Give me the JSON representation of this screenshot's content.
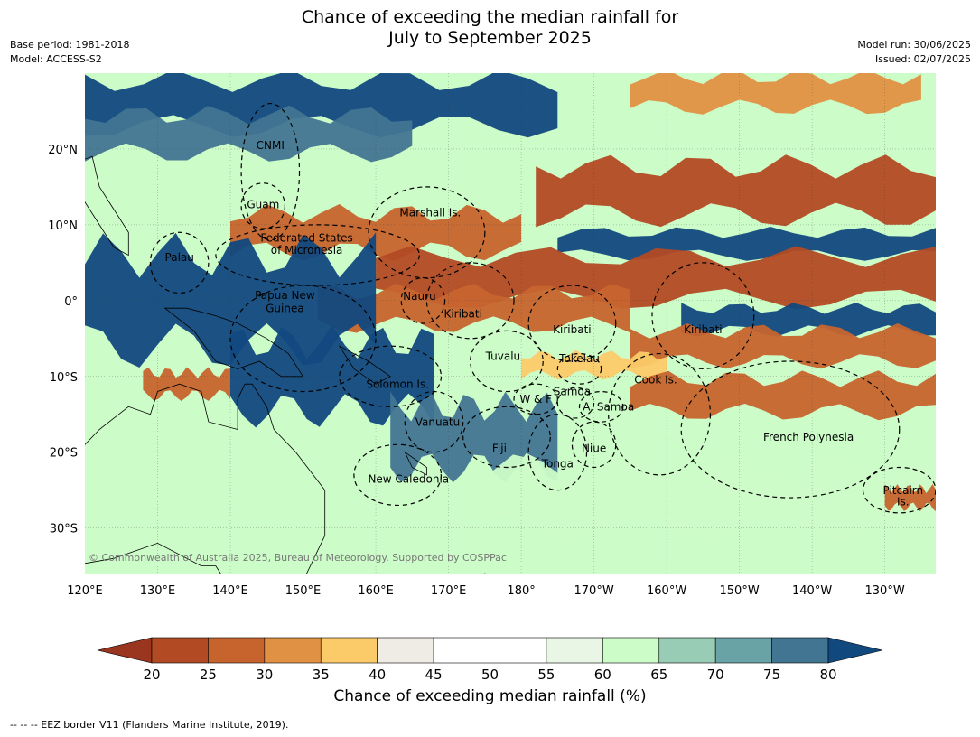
{
  "title": {
    "line1": "Chance of exceeding the median rainfall for",
    "line2": "July to September 2025"
  },
  "meta_left": {
    "base_period": "Base period: 1981-2018",
    "model": "Model: ACCESS-S2"
  },
  "meta_right": {
    "model_run": "Model run: 30/06/2025",
    "issued": "Issued: 02/07/2025"
  },
  "map": {
    "lon_labels": [
      "120°E",
      "130°E",
      "140°E",
      "150°E",
      "160°E",
      "170°E",
      "180°",
      "170°W",
      "160°W",
      "150°W",
      "140°W",
      "130°W"
    ],
    "lat_labels": [
      "20°N",
      "10°N",
      "0°",
      "10°S",
      "20°S",
      "30°S"
    ],
    "lon_range": [
      120,
      237
    ],
    "lat_range": [
      -36,
      30
    ],
    "copyright": "© Commonwealth of Australia 2025, Bureau of Meteorology. Supported by COSPPac",
    "regions": [
      {
        "name": "CNMI",
        "lon": 145.5,
        "lat": 20.0
      },
      {
        "name": "Guam",
        "lon": 144.5,
        "lat": 12.2
      },
      {
        "name": "Marshall Is.",
        "lon": 167.5,
        "lat": 11.1
      },
      {
        "name": "Federated States",
        "lon": 150.5,
        "lat": 7.8
      },
      {
        "name": "of Micronesia",
        "lon": 150.5,
        "lat": 6.2
      },
      {
        "name": "Palau",
        "lon": 133.0,
        "lat": 5.2
      },
      {
        "name": "Papua New",
        "lon": 147.5,
        "lat": 0.2
      },
      {
        "name": "Guinea",
        "lon": 147.5,
        "lat": -1.5
      },
      {
        "name": "Nauru",
        "lon": 166.0,
        "lat": 0.1
      },
      {
        "name": "Kiribati",
        "lon": 172.0,
        "lat": -2.2
      },
      {
        "name": "Kiribati",
        "lon": 187.0,
        "lat": -4.3
      },
      {
        "name": "Kiribati",
        "lon": 205.0,
        "lat": -4.3
      },
      {
        "name": "Tuvalu",
        "lon": 177.5,
        "lat": -7.8
      },
      {
        "name": "Tokelau",
        "lon": 188.0,
        "lat": -8.1
      },
      {
        "name": "Cook Is.",
        "lon": 198.5,
        "lat": -10.9
      },
      {
        "name": "Solomon Is.",
        "lon": 163.0,
        "lat": -11.5
      },
      {
        "name": "Samoa",
        "lon": 187.0,
        "lat": -12.5
      },
      {
        "name": "W & F",
        "lon": 182.0,
        "lat": -13.5
      },
      {
        "name": "A. Samoa",
        "lon": 192.0,
        "lat": -14.5
      },
      {
        "name": "Vanuatu",
        "lon": 168.5,
        "lat": -16.5
      },
      {
        "name": "French Polynesia",
        "lon": 219.5,
        "lat": -18.5
      },
      {
        "name": "Fiji",
        "lon": 177.0,
        "lat": -20.0
      },
      {
        "name": "Niue",
        "lon": 190.0,
        "lat": -20.0
      },
      {
        "name": "Tonga",
        "lon": 185.0,
        "lat": -22.0
      },
      {
        "name": "New Caledonia",
        "lon": 164.5,
        "lat": -24.0
      },
      {
        "name": "Pitcairn",
        "lon": 232.5,
        "lat": -25.5
      },
      {
        "name": "Is.",
        "lon": 232.5,
        "lat": -27.0
      }
    ],
    "bands": [
      {
        "category": 20,
        "lat": 14.5,
        "lon_start": 182,
        "lon_end": 237,
        "half_height": 3.2
      },
      {
        "category": 25,
        "lat": 9.0,
        "lon_start": 140,
        "lon_end": 180,
        "half_height": 2.5
      },
      {
        "category": 80,
        "lat": 7.5,
        "lon_start": 185,
        "lon_end": 237,
        "half_height": 1.5
      },
      {
        "category": 20,
        "lat": 3.0,
        "lon_start": 160,
        "lon_end": 237,
        "half_height": 2.8
      },
      {
        "category": 25,
        "lat": -1.0,
        "lon_start": 152,
        "lon_end": 195,
        "half_height": 2.2
      },
      {
        "category": 80,
        "lat": -2.5,
        "lon_start": 202,
        "lon_end": 237,
        "half_height": 1.5
      },
      {
        "category": 25,
        "lat": -6.0,
        "lon_start": 195,
        "lon_end": 237,
        "half_height": 2.0
      },
      {
        "category": 35,
        "lat": -8.5,
        "lon_start": 180,
        "lon_end": 200,
        "half_height": 1.3
      },
      {
        "category": 25,
        "lat": -12.5,
        "lon_start": 195,
        "lon_end": 237,
        "half_height": 2.2
      },
      {
        "category": 80,
        "lat": 0.0,
        "lon_start": 120,
        "lon_end": 160,
        "half_height": 6.0
      },
      {
        "category": 80,
        "lat": -10.0,
        "lon_start": 140,
        "lon_end": 168,
        "half_height": 4.5
      },
      {
        "category": 75,
        "lat": -18.0,
        "lon_start": 162,
        "lon_end": 185,
        "half_height": 4.0
      },
      {
        "category": 80,
        "lat": 26.0,
        "lon_start": 120,
        "lon_end": 185,
        "half_height": 3.0
      },
      {
        "category": 75,
        "lat": 22.0,
        "lon_start": 120,
        "lon_end": 165,
        "half_height": 2.5
      },
      {
        "category": 30,
        "lat": 27.5,
        "lon_start": 195,
        "lon_end": 235,
        "half_height": 2.0
      },
      {
        "category": 60,
        "lat": -26.0,
        "lon_start": 175,
        "lon_end": 237,
        "half_height": 4.0
      },
      {
        "category": 25,
        "lat": -11.0,
        "lon_start": 128,
        "lon_end": 140,
        "half_height": 1.5
      },
      {
        "category": 25,
        "lat": -26.0,
        "lon_start": 230,
        "lon_end": 237,
        "half_height": 1.2
      }
    ]
  },
  "colorbar": {
    "title": "Chance of exceeding median rainfall (%)",
    "ticks": [
      "20",
      "25",
      "30",
      "35",
      "40",
      "45",
      "50",
      "55",
      "60",
      "65",
      "70",
      "75",
      "80"
    ],
    "colors": [
      "#b24a24",
      "#c7642e",
      "#e09143",
      "#fccb69",
      "#efece6",
      "#ffffff",
      "#ffffff",
      "#e9f6e6",
      "#ccfcc8",
      "#99ccb4",
      "#69a3a6",
      "#427592"
    ],
    "low_extend_color": "#9a3520",
    "high_extend_color": "#11497f"
  },
  "footer": "--  --  -- EEZ border V11 (Flanders Marine Institute, 2019)."
}
